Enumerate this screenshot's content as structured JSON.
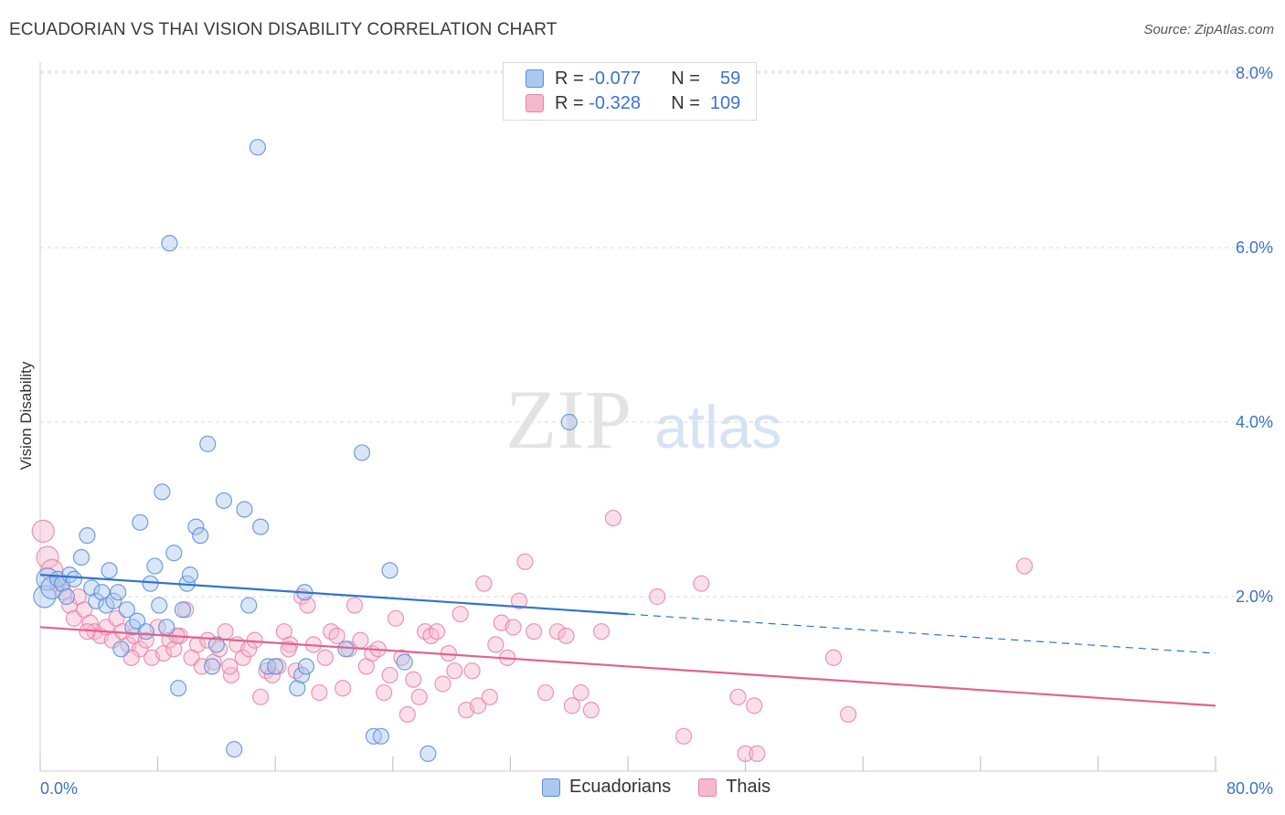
{
  "title": "ECUADORIAN VS THAI VISION DISABILITY CORRELATION CHART",
  "source": "Source: ZipAtlas.com",
  "watermark": {
    "zip": "ZIP",
    "atlas": "atlas"
  },
  "legend": {
    "rows": [
      {
        "r_label": "R =",
        "r_value": "-0.077",
        "n_label": "N =",
        "n_value": "59"
      },
      {
        "r_label": "R =",
        "r_value": "-0.328",
        "n_label": "N =",
        "n_value": "109"
      }
    ]
  },
  "bottom_legend": {
    "items": [
      "Ecuadorians",
      "Thais"
    ]
  },
  "colors": {
    "ecuadorians_fill": "#aac8f0",
    "ecuadorians_stroke": "#5b8ed6",
    "ecuadorians_line": "#2f74d0",
    "thais_fill": "#f6b8cc",
    "thais_stroke": "#e884a6",
    "thais_line": "#e2628f",
    "axis_label": "#3a74c9",
    "grid": "#d8d8d8"
  },
  "chart_data": {
    "type": "scatter",
    "title": "ECUADORIAN VS THAI VISION DISABILITY CORRELATION CHART",
    "xlabel": "",
    "ylabel": "Vision Disability",
    "xlim": [
      0,
      80
    ],
    "ylim": [
      0,
      8.0
    ],
    "x_tick_labels": [
      "0.0%",
      "80.0%"
    ],
    "y_ticks": [
      2.0,
      4.0,
      6.0,
      8.0
    ],
    "y_tick_labels": [
      "2.0%",
      "4.0%",
      "6.0%",
      "8.0%"
    ],
    "grid": true,
    "legend_placement": "bottom-center",
    "series": [
      {
        "name": "Ecuadorians",
        "r": -0.077,
        "n": 59,
        "trend": {
          "x": [
            0,
            40
          ],
          "y": [
            2.25,
            1.8
          ],
          "dashed_to": [
            80,
            1.35
          ]
        },
        "points": [
          [
            0.3,
            2.0
          ],
          [
            0.5,
            2.2
          ],
          [
            0.8,
            2.1
          ],
          [
            1.2,
            2.2
          ],
          [
            1.5,
            2.15
          ],
          [
            1.8,
            2.0
          ],
          [
            2.0,
            2.25
          ],
          [
            2.3,
            2.2
          ],
          [
            2.8,
            2.45
          ],
          [
            3.2,
            2.7
          ],
          [
            3.5,
            2.1
          ],
          [
            3.8,
            1.95
          ],
          [
            4.2,
            2.05
          ],
          [
            4.5,
            1.9
          ],
          [
            4.7,
            2.3
          ],
          [
            5.0,
            1.95
          ],
          [
            5.3,
            2.05
          ],
          [
            5.5,
            1.4
          ],
          [
            5.9,
            1.85
          ],
          [
            6.3,
            1.65
          ],
          [
            6.6,
            1.72
          ],
          [
            6.8,
            2.85
          ],
          [
            7.2,
            1.6
          ],
          [
            7.5,
            2.15
          ],
          [
            7.8,
            2.35
          ],
          [
            8.1,
            1.9
          ],
          [
            8.3,
            3.2
          ],
          [
            8.6,
            1.65
          ],
          [
            8.8,
            6.05
          ],
          [
            9.1,
            2.5
          ],
          [
            9.4,
            0.95
          ],
          [
            9.7,
            1.85
          ],
          [
            10.0,
            2.15
          ],
          [
            10.2,
            2.25
          ],
          [
            10.6,
            2.8
          ],
          [
            10.9,
            2.7
          ],
          [
            11.4,
            3.75
          ],
          [
            11.7,
            1.2
          ],
          [
            12.0,
            1.45
          ],
          [
            12.5,
            3.1
          ],
          [
            13.2,
            0.25
          ],
          [
            13.9,
            3.0
          ],
          [
            14.2,
            1.9
          ],
          [
            14.8,
            7.15
          ],
          [
            15.0,
            2.8
          ],
          [
            15.5,
            1.2
          ],
          [
            16.0,
            1.2
          ],
          [
            17.5,
            0.95
          ],
          [
            17.8,
            1.1
          ],
          [
            18.0,
            2.05
          ],
          [
            18.1,
            1.2
          ],
          [
            20.8,
            1.4
          ],
          [
            21.9,
            3.65
          ],
          [
            22.7,
            0.4
          ],
          [
            23.2,
            0.4
          ],
          [
            23.8,
            2.3
          ],
          [
            24.8,
            1.25
          ],
          [
            26.4,
            0.2
          ],
          [
            36.0,
            4.0
          ]
        ]
      },
      {
        "name": "Thais",
        "r": -0.328,
        "n": 109,
        "trend": {
          "x": [
            0,
            80
          ],
          "y": [
            1.65,
            0.75
          ]
        },
        "points": [
          [
            0.2,
            2.75
          ],
          [
            0.5,
            2.45
          ],
          [
            0.8,
            2.3
          ],
          [
            1.2,
            2.15
          ],
          [
            1.6,
            2.05
          ],
          [
            2.0,
            1.9
          ],
          [
            2.3,
            1.75
          ],
          [
            2.6,
            2.0
          ],
          [
            3.0,
            1.85
          ],
          [
            3.4,
            1.7
          ],
          [
            3.7,
            1.6
          ],
          [
            4.1,
            1.55
          ],
          [
            4.5,
            1.65
          ],
          [
            4.9,
            1.5
          ],
          [
            5.2,
            1.75
          ],
          [
            5.6,
            1.6
          ],
          [
            6.0,
            1.45
          ],
          [
            6.4,
            1.55
          ],
          [
            6.8,
            1.4
          ],
          [
            7.2,
            1.5
          ],
          [
            7.6,
            1.3
          ],
          [
            8.0,
            1.65
          ],
          [
            8.4,
            1.35
          ],
          [
            8.8,
            1.5
          ],
          [
            9.1,
            1.4
          ],
          [
            9.5,
            1.55
          ],
          [
            9.9,
            1.85
          ],
          [
            10.3,
            1.3
          ],
          [
            10.7,
            1.45
          ],
          [
            11.0,
            1.2
          ],
          [
            11.4,
            1.5
          ],
          [
            11.8,
            1.25
          ],
          [
            12.2,
            1.4
          ],
          [
            12.6,
            1.6
          ],
          [
            13.0,
            1.1
          ],
          [
            13.4,
            1.45
          ],
          [
            13.8,
            1.3
          ],
          [
            14.2,
            1.4
          ],
          [
            14.6,
            1.5
          ],
          [
            15.0,
            0.85
          ],
          [
            15.4,
            1.15
          ],
          [
            15.8,
            1.1
          ],
          [
            16.2,
            1.2
          ],
          [
            16.6,
            1.6
          ],
          [
            17.0,
            1.45
          ],
          [
            17.4,
            1.15
          ],
          [
            17.8,
            2.0
          ],
          [
            18.2,
            1.9
          ],
          [
            18.6,
            1.45
          ],
          [
            19.0,
            0.9
          ],
          [
            19.4,
            1.3
          ],
          [
            19.8,
            1.6
          ],
          [
            20.2,
            1.55
          ],
          [
            20.6,
            0.95
          ],
          [
            21.0,
            1.4
          ],
          [
            21.4,
            1.9
          ],
          [
            21.8,
            1.5
          ],
          [
            22.2,
            1.2
          ],
          [
            22.6,
            1.35
          ],
          [
            23.0,
            1.4
          ],
          [
            23.4,
            0.9
          ],
          [
            23.8,
            1.1
          ],
          [
            24.2,
            1.75
          ],
          [
            24.6,
            1.3
          ],
          [
            25.0,
            0.65
          ],
          [
            25.4,
            1.05
          ],
          [
            25.8,
            0.85
          ],
          [
            26.2,
            1.6
          ],
          [
            26.6,
            1.55
          ],
          [
            27.0,
            1.6
          ],
          [
            27.4,
            1.0
          ],
          [
            27.8,
            1.35
          ],
          [
            28.2,
            1.15
          ],
          [
            28.6,
            1.8
          ],
          [
            29.0,
            0.7
          ],
          [
            29.4,
            1.15
          ],
          [
            29.8,
            0.75
          ],
          [
            30.2,
            2.15
          ],
          [
            30.6,
            0.85
          ],
          [
            31.0,
            1.45
          ],
          [
            31.4,
            1.7
          ],
          [
            31.8,
            1.3
          ],
          [
            32.2,
            1.65
          ],
          [
            32.6,
            1.95
          ],
          [
            33.0,
            2.4
          ],
          [
            33.6,
            1.6
          ],
          [
            34.4,
            0.9
          ],
          [
            35.2,
            1.6
          ],
          [
            35.8,
            1.55
          ],
          [
            36.2,
            0.75
          ],
          [
            36.8,
            0.9
          ],
          [
            37.5,
            0.7
          ],
          [
            38.2,
            1.6
          ],
          [
            39.0,
            2.9
          ],
          [
            42.0,
            2.0
          ],
          [
            43.8,
            0.4
          ],
          [
            45.0,
            2.15
          ],
          [
            47.5,
            0.85
          ],
          [
            48.0,
            0.2
          ],
          [
            48.6,
            0.75
          ],
          [
            48.8,
            0.2
          ],
          [
            54.0,
            1.3
          ],
          [
            55.0,
            0.65
          ],
          [
            67.0,
            2.35
          ],
          [
            3.2,
            1.6
          ],
          [
            6.2,
            1.3
          ],
          [
            9.3,
            1.55
          ],
          [
            12.9,
            1.2
          ],
          [
            16.9,
            1.4
          ]
        ]
      }
    ]
  }
}
